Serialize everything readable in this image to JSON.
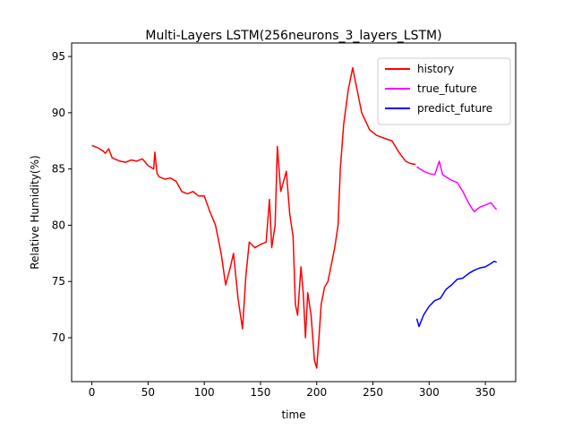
{
  "chart_data": {
    "type": "line",
    "title": "Multi-Layers LSTM(256neurons_3_layers_LSTM)",
    "x_label": "time",
    "y_label": "Relative Humidity(%)",
    "xlim": [
      -18,
      377
    ],
    "ylim": [
      66.1,
      96.2
    ],
    "xticks": [
      0,
      50,
      100,
      150,
      200,
      250,
      300,
      350
    ],
    "yticks": [
      70,
      75,
      80,
      85,
      90,
      95
    ],
    "legend": "upper right",
    "series": [
      {
        "name": "history",
        "color": "#ff0000",
        "x": [
          0,
          5,
          10,
          12,
          15,
          18,
          20,
          25,
          30,
          35,
          40,
          45,
          50,
          55,
          56,
          58,
          60,
          65,
          70,
          75,
          80,
          85,
          90,
          95,
          100,
          105,
          110,
          115,
          119,
          123,
          126,
          130,
          134,
          137,
          140,
          145,
          150,
          155,
          158,
          160,
          163,
          165,
          168,
          173,
          176,
          179,
          181,
          183,
          186,
          188,
          190,
          192,
          195,
          198,
          200,
          202,
          204,
          207,
          210,
          213,
          216,
          219,
          221,
          224,
          228,
          232,
          235,
          240,
          247,
          253,
          261,
          267,
          273,
          279,
          283,
          288
        ],
        "values": [
          87.1,
          86.9,
          86.6,
          86.4,
          86.8,
          86.0,
          85.9,
          85.7,
          85.6,
          85.8,
          85.7,
          85.9,
          85.3,
          85.0,
          86.5,
          84.6,
          84.3,
          84.1,
          84.2,
          83.9,
          83.0,
          82.8,
          83.0,
          82.6,
          82.6,
          81.2,
          80.0,
          77.5,
          74.7,
          76.2,
          77.5,
          73.5,
          70.8,
          75.5,
          78.5,
          78.0,
          78.3,
          78.5,
          82.3,
          78.0,
          80.0,
          87.0,
          83.0,
          84.8,
          81.0,
          79.0,
          73.0,
          72.0,
          76.3,
          74.0,
          70.0,
          74.0,
          72.0,
          68.0,
          67.3,
          70.0,
          73.0,
          74.5,
          75.0,
          76.5,
          78.0,
          80.0,
          85.0,
          89.0,
          92.0,
          94.0,
          92.5,
          90.0,
          88.5,
          88.0,
          87.7,
          87.5,
          86.5,
          85.7,
          85.5,
          85.4
        ]
      },
      {
        "name": "true_future",
        "color": "#ff00ff",
        "x": [
          289,
          295,
          300,
          305,
          309,
          312,
          315,
          320,
          325,
          330,
          335,
          340,
          345,
          350,
          355,
          358,
          360
        ],
        "values": [
          85.2,
          84.8,
          84.6,
          84.5,
          85.7,
          84.5,
          84.3,
          84.0,
          83.8,
          83.0,
          82.0,
          81.2,
          81.6,
          81.8,
          82.0,
          81.6,
          81.4
        ]
      },
      {
        "name": "predict_future",
        "color": "#0000ff",
        "x": [
          289,
          291,
          295,
          300,
          305,
          310,
          315,
          320,
          325,
          330,
          335,
          340,
          345,
          350,
          355,
          358,
          360
        ],
        "values": [
          71.7,
          71.0,
          72.0,
          72.8,
          73.3,
          73.5,
          74.3,
          74.7,
          75.2,
          75.3,
          75.7,
          76.0,
          76.2,
          76.3,
          76.6,
          76.8,
          76.7
        ]
      }
    ]
  }
}
